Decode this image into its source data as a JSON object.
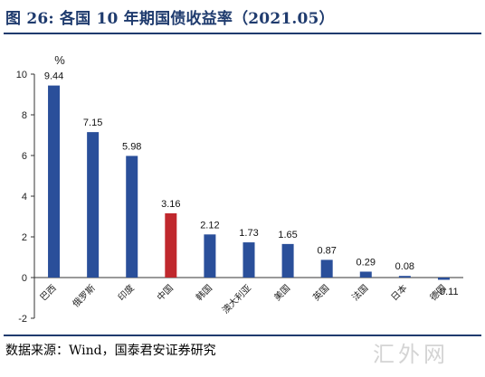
{
  "figure": {
    "title": "图 26:  各国 10 年期国债收益率（2021.05）",
    "source": "数据来源：Wind，国泰君安证券研究",
    "watermark": "汇外网"
  },
  "chart_data": {
    "type": "bar",
    "title": "",
    "ylabel": "%",
    "ylim": [
      -2,
      10
    ],
    "yticks": [
      -2,
      0,
      2,
      4,
      6,
      8,
      10
    ],
    "grid": false,
    "categories": [
      "巴西",
      "俄罗斯",
      "印度",
      "中国",
      "韩国",
      "澳大利亚",
      "美国",
      "英国",
      "法国",
      "日本",
      "德国"
    ],
    "values": [
      9.44,
      7.15,
      5.98,
      3.16,
      2.12,
      1.73,
      1.65,
      0.87,
      0.29,
      0.08,
      -0.11
    ],
    "value_labels": [
      "9.44",
      "7.15",
      "5.98",
      "3.16",
      "2.12",
      "1.73",
      "1.65",
      "0.87",
      "0.29",
      "0.08",
      "-0.11"
    ],
    "colors": {
      "default": "#2a4f9a",
      "highlight": "#c0282d",
      "highlight_category": "中国"
    }
  }
}
